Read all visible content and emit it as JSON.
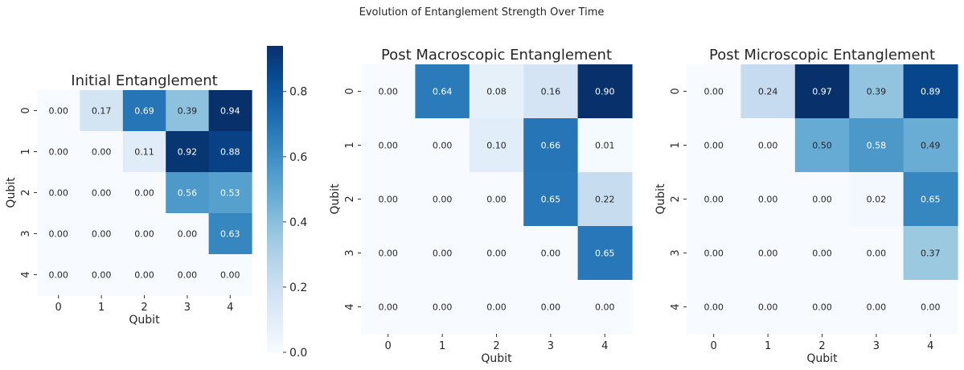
{
  "figure": {
    "suptitle": "Evolution of Entanglement Strength Over Time"
  },
  "chart_data": [
    {
      "type": "heatmap",
      "title": "Initial Entanglement",
      "xlabel": "Qubit",
      "ylabel": "Qubit",
      "x": [
        "0",
        "1",
        "2",
        "3",
        "4"
      ],
      "y": [
        "0",
        "1",
        "2",
        "3",
        "4"
      ],
      "values": [
        [
          0.0,
          0.17,
          0.69,
          0.39,
          0.94
        ],
        [
          0.0,
          0.0,
          0.11,
          0.92,
          0.88
        ],
        [
          0.0,
          0.0,
          0.0,
          0.56,
          0.53
        ],
        [
          0.0,
          0.0,
          0.0,
          0.0,
          0.63
        ],
        [
          0.0,
          0.0,
          0.0,
          0.0,
          0.0
        ]
      ],
      "colormap": "Blues",
      "vmin": 0.0,
      "vmax": 0.94,
      "colorbar": {
        "ticks": [
          "0.0",
          "0.2",
          "0.4",
          "0.6",
          "0.8"
        ]
      }
    },
    {
      "type": "heatmap",
      "title": "Post Macroscopic Entanglement",
      "xlabel": "Qubit",
      "ylabel": "Qubit",
      "x": [
        "0",
        "1",
        "2",
        "3",
        "4"
      ],
      "y": [
        "0",
        "1",
        "2",
        "3",
        "4"
      ],
      "values": [
        [
          0.0,
          0.64,
          0.08,
          0.16,
          0.9
        ],
        [
          0.0,
          0.0,
          0.1,
          0.66,
          0.01
        ],
        [
          0.0,
          0.0,
          0.0,
          0.65,
          0.22
        ],
        [
          0.0,
          0.0,
          0.0,
          0.0,
          0.65
        ],
        [
          0.0,
          0.0,
          0.0,
          0.0,
          0.0
        ]
      ],
      "colormap": "Blues",
      "vmin": 0.0,
      "vmax": 0.9
    },
    {
      "type": "heatmap",
      "title": "Post Microscopic Entanglement",
      "xlabel": "Qubit",
      "ylabel": "Qubit",
      "x": [
        "0",
        "1",
        "2",
        "3",
        "4"
      ],
      "y": [
        "0",
        "1",
        "2",
        "3",
        "4"
      ],
      "values": [
        [
          0.0,
          0.24,
          0.97,
          0.39,
          0.89
        ],
        [
          0.0,
          0.0,
          0.5,
          0.58,
          0.49
        ],
        [
          0.0,
          0.0,
          0.0,
          0.02,
          0.65
        ],
        [
          0.0,
          0.0,
          0.0,
          0.0,
          0.37
        ],
        [
          0.0,
          0.0,
          0.0,
          0.0,
          0.0
        ]
      ],
      "colormap": "Blues",
      "vmin": 0.0,
      "vmax": 0.97
    }
  ]
}
